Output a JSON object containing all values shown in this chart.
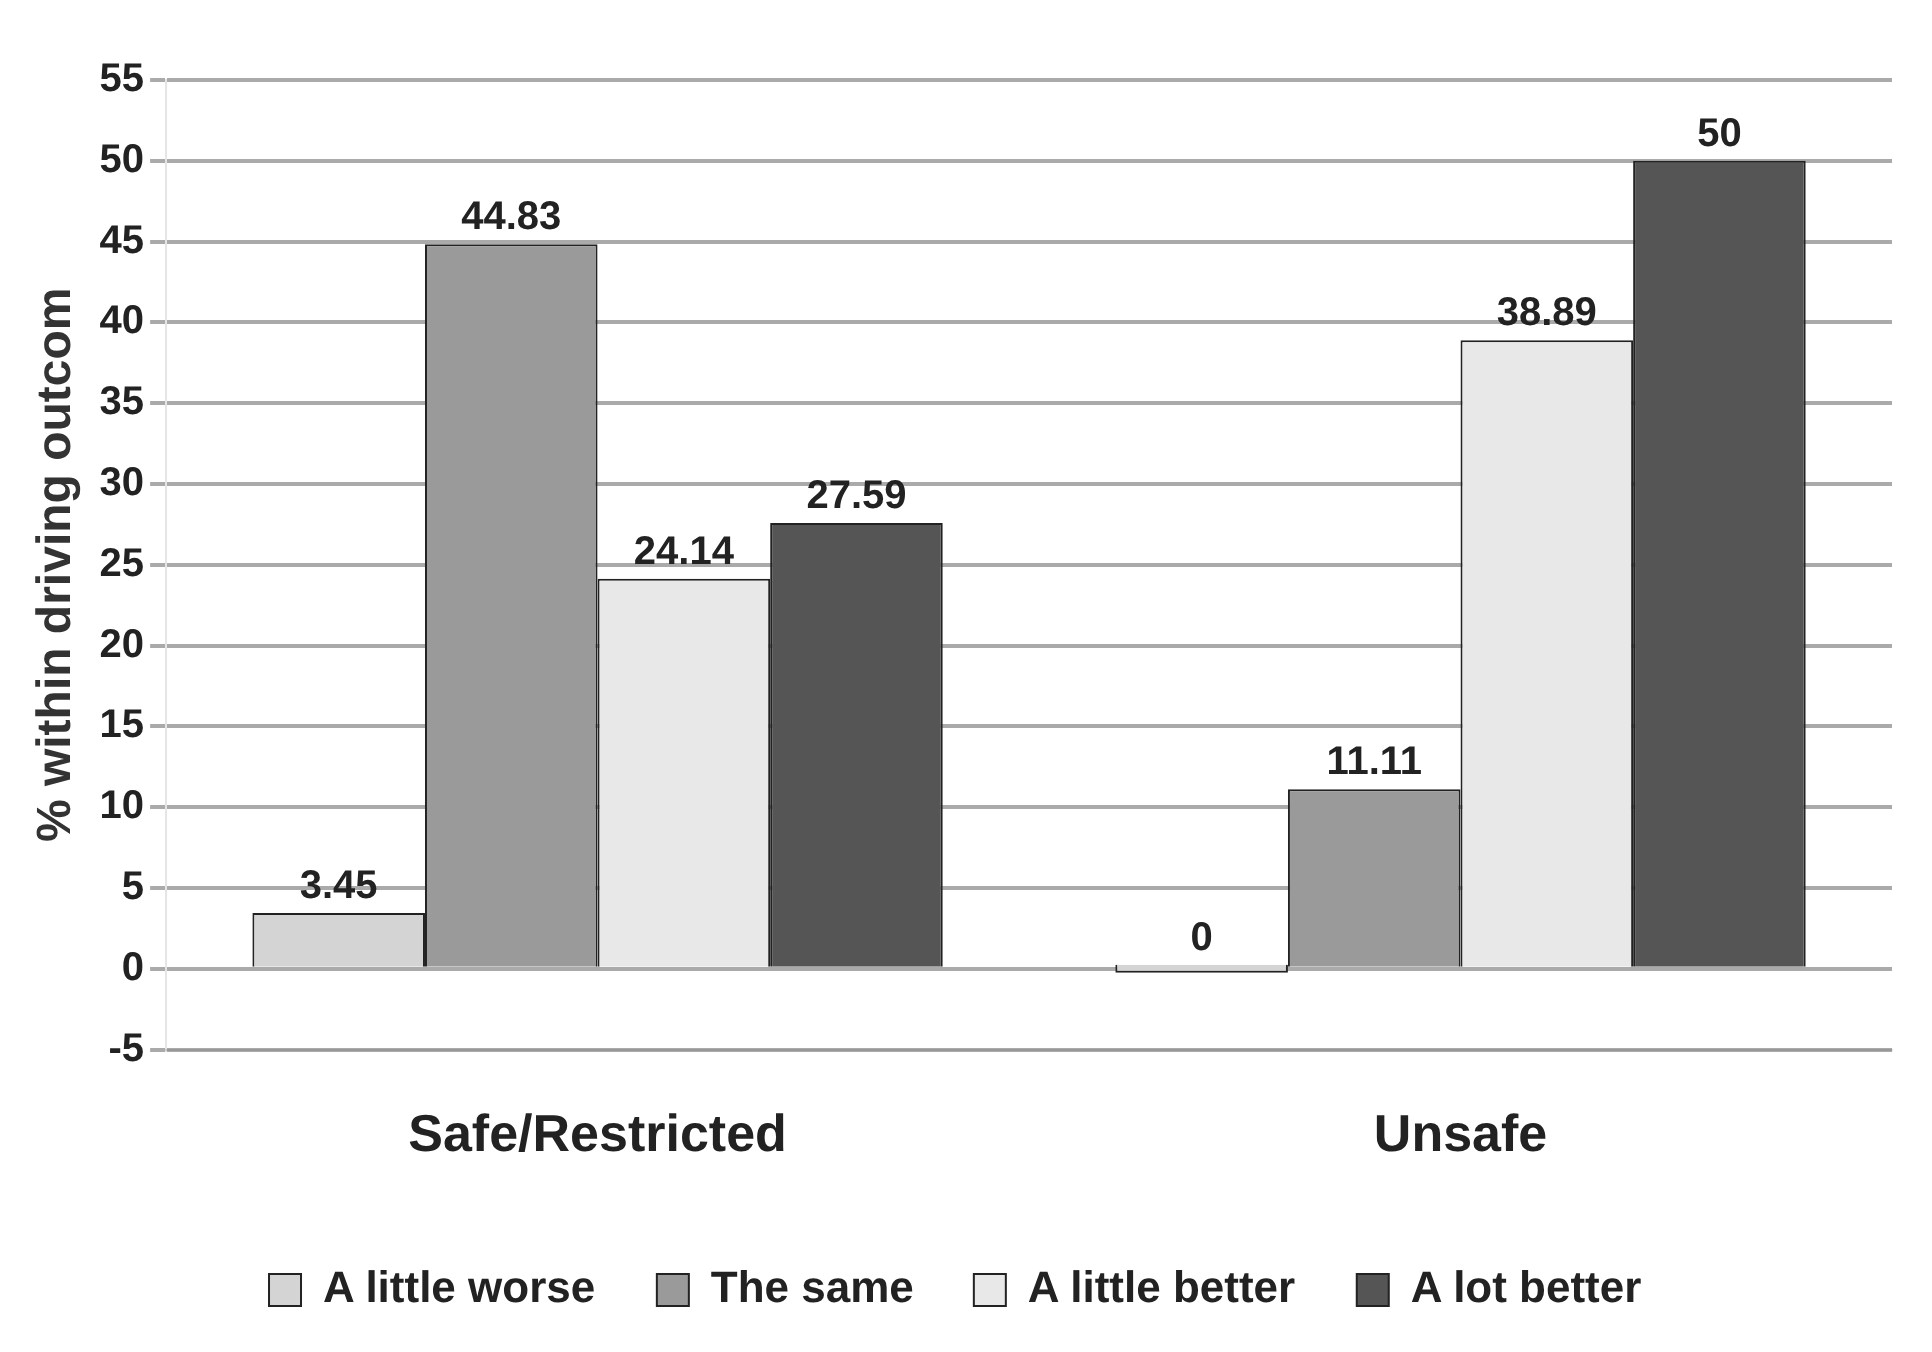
{
  "chart_data": {
    "type": "bar",
    "ylabel": "% within driving outcom",
    "categories": [
      "Safe/Restricted",
      "Unsafe"
    ],
    "series": [
      {
        "name": "A little worse",
        "color": "#d4d4d4",
        "values": [
          3.45,
          0
        ]
      },
      {
        "name": "The same",
        "color": "#9a9a9a",
        "values": [
          44.83,
          11.11
        ]
      },
      {
        "name": "A little better",
        "color": "#e8e8e8",
        "values": [
          24.14,
          38.89
        ]
      },
      {
        "name": "A lot better",
        "color": "#555555",
        "values": [
          27.59,
          50
        ]
      }
    ],
    "ylim": [
      -5,
      55
    ],
    "yticks": [
      -5,
      0,
      5,
      10,
      15,
      20,
      25,
      30,
      35,
      40,
      45,
      50,
      55
    ],
    "grid": "y",
    "legend": "bottom",
    "data_labels": true
  }
}
